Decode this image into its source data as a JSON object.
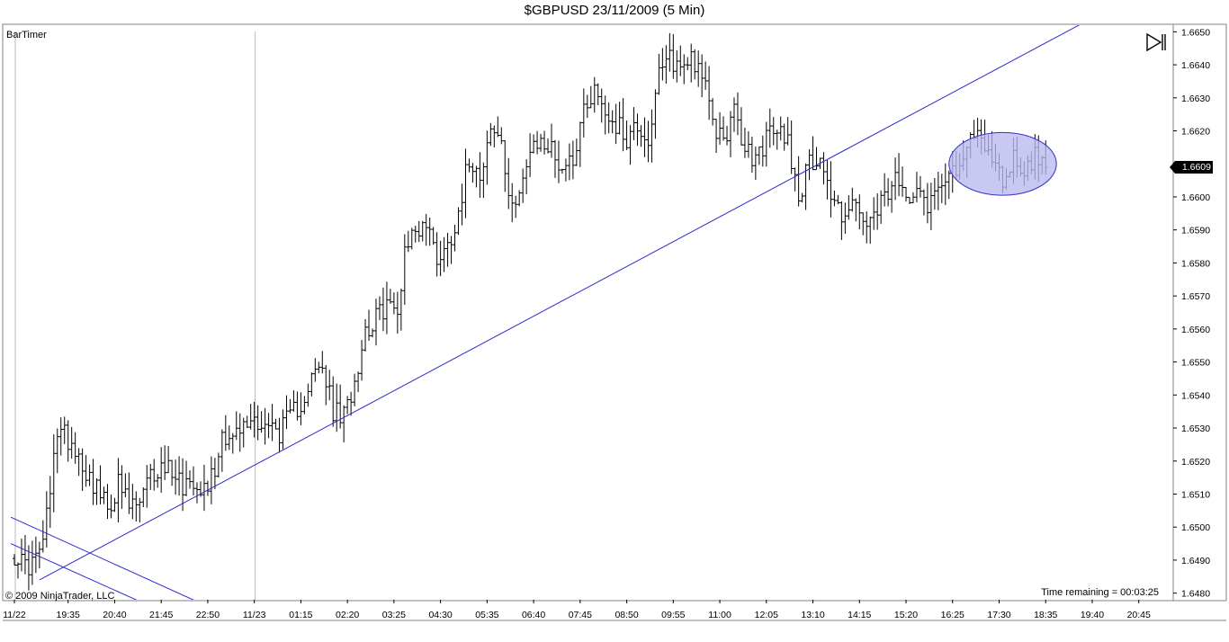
{
  "title": "$GBPUSD  23/11/2009 (5 Min)",
  "indicator_label": "BarTimer",
  "copyright": "© 2009 NinjaTrader, LLC",
  "timer_text": "Time remaining = 00:03:25",
  "current_price_label": "1.6609",
  "icons": {
    "play": "step-forward-icon"
  },
  "colors": {
    "bars": "#000000",
    "trendline": "#2a2ad0",
    "ellipse_fill": "#b8b8f0",
    "ellipse_stroke": "#3030c8",
    "separator": "#b8b8b8"
  },
  "chart_data": {
    "type": "ohlc",
    "symbol": "$GBPUSD",
    "interval": "5 Min",
    "ylim": [
      1.6478,
      1.6652
    ],
    "y_ticks": [
      "1.6480",
      "1.6490",
      "1.6500",
      "1.6510",
      "1.6520",
      "1.6530",
      "1.6540",
      "1.6550",
      "1.6560",
      "1.6570",
      "1.6580",
      "1.6590",
      "1.6600",
      "1.6610",
      "1.6620",
      "1.6630",
      "1.6640",
      "1.6650"
    ],
    "x_ticks": [
      "11/22",
      "19:35",
      "20:40",
      "21:45",
      "22:50",
      "11/23",
      "01:15",
      "02:20",
      "03:25",
      "04:30",
      "05:35",
      "06:40",
      "07:45",
      "08:50",
      "09:55",
      "11:00",
      "12:05",
      "13:10",
      "14:15",
      "15:20",
      "16:25",
      "17:30",
      "18:35",
      "19:40",
      "20:45"
    ],
    "x_domain": [
      0,
      300
    ],
    "x_tick_positions": [
      0,
      15,
      28,
      41,
      54,
      67,
      80,
      93,
      106,
      119,
      132,
      145,
      158,
      171,
      184,
      197,
      210,
      223,
      236,
      249,
      262,
      275,
      288,
      301,
      314
    ],
    "session_separators": [
      0,
      67
    ],
    "anchors": [
      [
        0,
        1.6492
      ],
      [
        3,
        1.6488
      ],
      [
        6,
        1.649
      ],
      [
        8,
        1.6496
      ],
      [
        10,
        1.651
      ],
      [
        12,
        1.653
      ],
      [
        14,
        1.6528
      ],
      [
        16,
        1.6526
      ],
      [
        18,
        1.6522
      ],
      [
        20,
        1.6517
      ],
      [
        23,
        1.6512
      ],
      [
        26,
        1.6505
      ],
      [
        29,
        1.6513
      ],
      [
        32,
        1.6506
      ],
      [
        35,
        1.6507
      ],
      [
        38,
        1.6515
      ],
      [
        41,
        1.6518
      ],
      [
        44,
        1.6518
      ],
      [
        47,
        1.6513
      ],
      [
        50,
        1.6515
      ],
      [
        53,
        1.6512
      ],
      [
        56,
        1.6517
      ],
      [
        58,
        1.6529
      ],
      [
        61,
        1.6527
      ],
      [
        64,
        1.653
      ],
      [
        67,
        1.6533
      ],
      [
        70,
        1.6531
      ],
      [
        74,
        1.6529
      ],
      [
        77,
        1.6533
      ],
      [
        80,
        1.6538
      ],
      [
        83,
        1.6545
      ],
      [
        86,
        1.6548
      ],
      [
        89,
        1.6535
      ],
      [
        92,
        1.6533
      ],
      [
        95,
        1.6545
      ],
      [
        98,
        1.656
      ],
      [
        101,
        1.6563
      ],
      [
        104,
        1.6568
      ],
      [
        107,
        1.6564
      ],
      [
        109,
        1.6585
      ],
      [
        112,
        1.659
      ],
      [
        115,
        1.6592
      ],
      [
        118,
        1.6582
      ],
      [
        121,
        1.6585
      ],
      [
        124,
        1.6596
      ],
      [
        127,
        1.6612
      ],
      [
        130,
        1.6608
      ],
      [
        133,
        1.662
      ],
      [
        136,
        1.6617
      ],
      [
        138,
        1.6597
      ],
      [
        141,
        1.6603
      ],
      [
        144,
        1.6612
      ],
      [
        147,
        1.6617
      ],
      [
        150,
        1.6614
      ],
      [
        153,
        1.6609
      ],
      [
        156,
        1.6612
      ],
      [
        159,
        1.6627
      ],
      [
        162,
        1.6633
      ],
      [
        165,
        1.6626
      ],
      [
        168,
        1.6622
      ],
      [
        171,
        1.6618
      ],
      [
        174,
        1.6622
      ],
      [
        177,
        1.6617
      ],
      [
        180,
        1.6636
      ],
      [
        183,
        1.6642
      ],
      [
        186,
        1.6639
      ],
      [
        189,
        1.6643
      ],
      [
        192,
        1.6638
      ],
      [
        195,
        1.6621
      ],
      [
        198,
        1.6618
      ],
      [
        201,
        1.6625
      ],
      [
        204,
        1.6614
      ],
      [
        207,
        1.6611
      ],
      [
        210,
        1.6618
      ],
      [
        213,
        1.662
      ],
      [
        216,
        1.6618
      ],
      [
        219,
        1.66
      ],
      [
        222,
        1.661
      ],
      [
        225,
        1.6613
      ],
      [
        228,
        1.66
      ],
      [
        231,
        1.6595
      ],
      [
        234,
        1.6598
      ],
      [
        237,
        1.6592
      ],
      [
        240,
        1.6592
      ],
      [
        243,
        1.66
      ],
      [
        246,
        1.6604
      ],
      [
        249,
        1.66
      ],
      [
        252,
        1.6605
      ],
      [
        255,
        1.6598
      ],
      [
        258,
        1.6603
      ],
      [
        261,
        1.661
      ],
      [
        264,
        1.6606
      ],
      [
        267,
        1.6618
      ],
      [
        270,
        1.662
      ],
      [
        273,
        1.661
      ],
      [
        276,
        1.6605
      ],
      [
        279,
        1.6612
      ],
      [
        282,
        1.6608
      ],
      [
        285,
        1.6612
      ],
      [
        288,
        1.6609
      ]
    ],
    "last_price": 1.6609,
    "trendlines": [
      {
        "x1": 7,
        "y1": 1.6484,
        "x2": 299,
        "y2": 1.6653
      },
      {
        "x1": -1,
        "y1": 1.6503,
        "x2": 56,
        "y2": 1.6475
      },
      {
        "x1": -1,
        "y1": 1.6495,
        "x2": 36,
        "y2": 1.6477
      }
    ],
    "ellipse": {
      "cx": 276,
      "cy": 1.661,
      "rx": 15,
      "ry": 0.00095
    },
    "grid": false,
    "legend": "none"
  }
}
